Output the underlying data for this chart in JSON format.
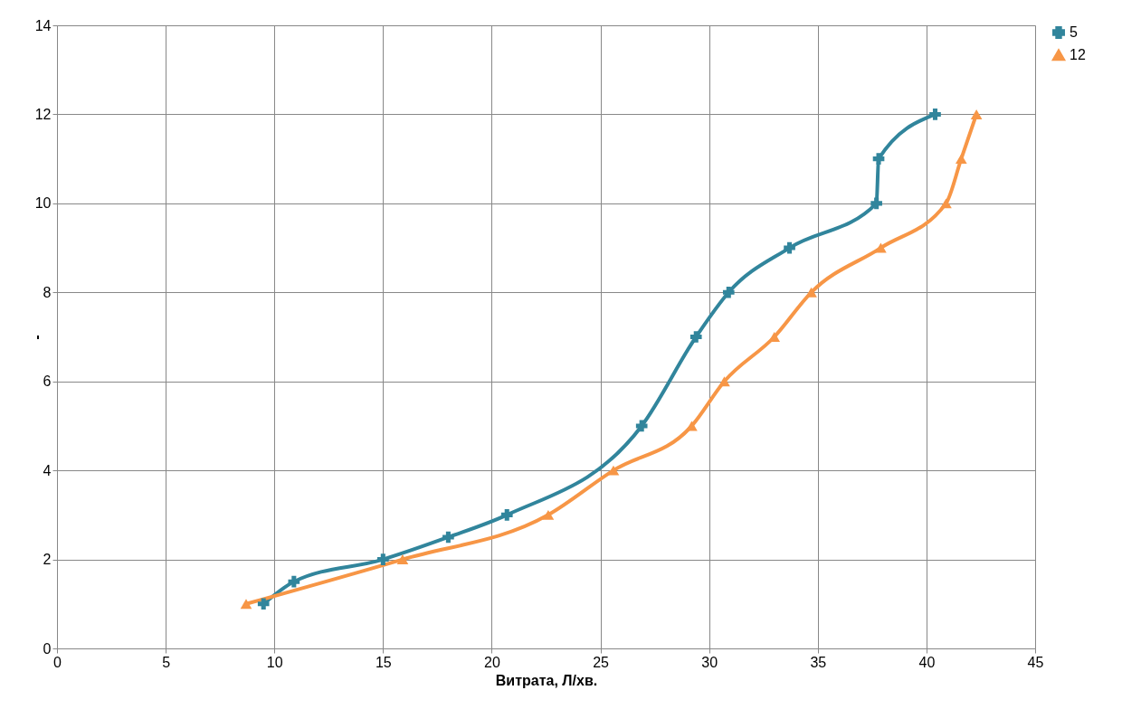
{
  "chart_data": {
    "type": "line",
    "xlabel": "Витрата, Л/хв.",
    "ylabel": "-",
    "xlim": [
      0,
      45
    ],
    "xticks": [
      0,
      5,
      10,
      15,
      20,
      25,
      30,
      35,
      40,
      45
    ],
    "ylim": [
      0,
      14
    ],
    "yticks": [
      0,
      2,
      4,
      6,
      8,
      10,
      12,
      14
    ],
    "grid": true,
    "legend": "right",
    "line_style": "solid",
    "series": [
      {
        "name": "5",
        "color": "#31859c",
        "marker": "cross",
        "x": [
          9.5,
          10.9,
          15.0,
          18.0,
          20.7,
          26.9,
          29.4,
          30.9,
          33.7,
          37.7,
          37.8,
          40.4
        ],
        "values": [
          1,
          1.5,
          2,
          2.5,
          3,
          5,
          7,
          8,
          9,
          10,
          11,
          12
        ]
      },
      {
        "name": "12",
        "color": "#f79646",
        "marker": "triangle",
        "x": [
          8.7,
          15.9,
          22.6,
          25.6,
          29.2,
          30.7,
          33.0,
          34.7,
          37.9,
          40.9,
          41.6,
          42.3
        ],
        "values": [
          1,
          2,
          3,
          4,
          5,
          6,
          7,
          8,
          9,
          10,
          11,
          12
        ]
      }
    ]
  }
}
